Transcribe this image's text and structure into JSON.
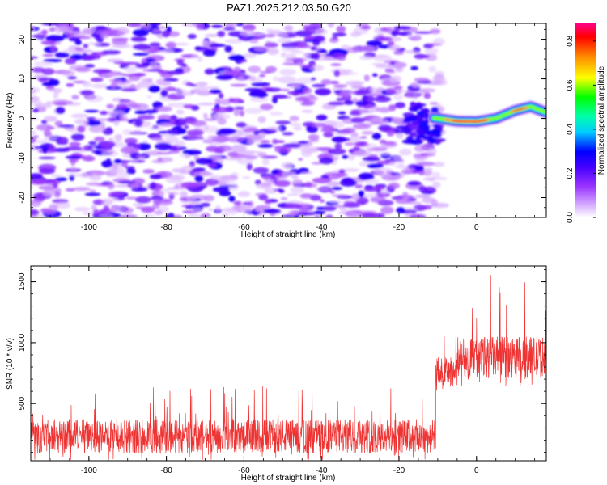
{
  "title": "PAZ1.2025.212.03.50.G20",
  "chart_data": [
    {
      "type": "heatmap",
      "xlabel": "Height of straight line (km)",
      "ylabel": "Frequency (Hz)",
      "xlim": [
        -115,
        18
      ],
      "ylim": [
        -25,
        24
      ],
      "xticks": [
        -100,
        -80,
        -60,
        -40,
        -20,
        0
      ],
      "yticks": [
        -20,
        -10,
        0,
        10,
        20
      ],
      "colorbar": {
        "label": "Normalized spectral amplitude",
        "range": [
          0,
          0.88
        ],
        "ticks": [
          0.0,
          0.2,
          0.4,
          0.6,
          0.8
        ],
        "tick_labels": [
          "0.0",
          "0.2",
          "0.4",
          "0.6",
          "0.8"
        ],
        "colormap": [
          "#ffffff",
          "#d9b3ff",
          "#9933ff",
          "#4400ff",
          "#0000ff",
          "#00ccff",
          "#00ffaa",
          "#00ff00",
          "#ffff00",
          "#ff8800",
          "#ff0000",
          "#ff0088"
        ]
      },
      "signal_track": [
        {
          "x": -16,
          "y": 0.5
        },
        {
          "x": -10,
          "y": 0
        },
        {
          "x": -5,
          "y": -0.7
        },
        {
          "x": 0,
          "y": -0.8
        },
        {
          "x": 5,
          "y": 0
        },
        {
          "x": 10,
          "y": 2
        },
        {
          "x": 14,
          "y": 3
        },
        {
          "x": 18,
          "y": 1.5
        }
      ],
      "signal_peak_amplitude": 0.85,
      "noise_amplitude": 0.25
    },
    {
      "type": "line",
      "xlabel": "Height of straight line (km)",
      "ylabel": "SNR (10 * v/v)",
      "xlim": [
        -115,
        18
      ],
      "ylim": [
        30,
        1630
      ],
      "xticks": [
        -100,
        -80,
        -60,
        -40,
        -20,
        0
      ],
      "yticks": [
        500,
        1000,
        1500
      ],
      "series_color": "#ee3333",
      "segments": [
        {
          "x_start": -115,
          "x_end": -10.5,
          "baseline": 230,
          "spread": 140,
          "spike_max": 640
        },
        {
          "x_start": -10.5,
          "x_end": -5,
          "baseline": 760,
          "spread": 120,
          "spike_max": 1150
        },
        {
          "x_start": -5,
          "x_end": 18,
          "baseline": 880,
          "spread": 170,
          "spike_max": 1630
        }
      ]
    }
  ]
}
